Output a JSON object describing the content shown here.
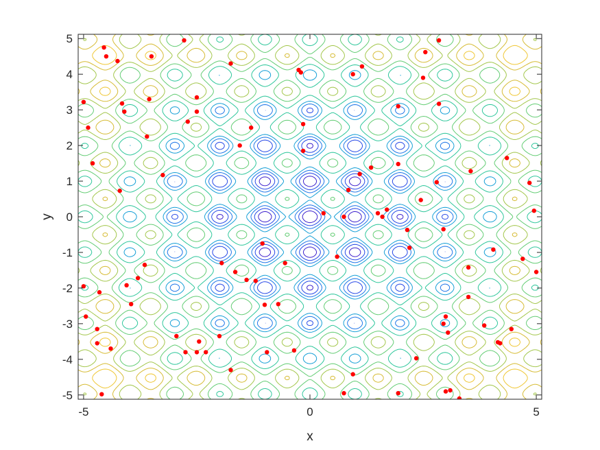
{
  "chart_data": {
    "type": "scatter",
    "title": "",
    "xlabel": "x",
    "ylabel": "y",
    "xlim": [
      -5.12,
      5.12
    ],
    "ylim": [
      -5.12,
      5.12
    ],
    "xticks": [
      -5,
      0,
      5
    ],
    "yticks": [
      -5,
      -4,
      -3,
      -2,
      -1,
      0,
      1,
      2,
      3,
      4,
      5
    ],
    "grid": false,
    "legend": "none",
    "background_contour": {
      "function": "Rastrigin",
      "levels": [
        5,
        10,
        15,
        20,
        30,
        40,
        50,
        60,
        70
      ],
      "colormap": [
        "#3b1fcc",
        "#2446e6",
        "#1b74e8",
        "#139ed6",
        "#12b8c0",
        "#2cc69a",
        "#62cc73",
        "#a2c64a",
        "#d6bb33",
        "#efc632"
      ]
    },
    "series": [
      {
        "marker_color": "#ff0000",
        "x": [
          -4.55,
          -4.5,
          -4.25,
          -3.5,
          -2.78,
          -1.75,
          -0.25,
          -0.2,
          0.95,
          1.15,
          2.55,
          2.5,
          2.85,
          -5.0,
          -4.15,
          -3.55,
          -2.5,
          -4.1,
          -2.5,
          -4.9,
          -2.7,
          -1.3,
          -0.15,
          1.95,
          2.85,
          -3.6,
          -1.55,
          -0.15,
          -4.8,
          1.35,
          1.95,
          3.55,
          4.35,
          -4.2,
          -3.25,
          0.85,
          1.1,
          2.8,
          4.85,
          2.45,
          4.95,
          0.3,
          0.75,
          1.5,
          1.6,
          1.7,
          2.15,
          2.95,
          -1.05,
          2.2,
          4.05,
          -3.65,
          -1.95,
          -0.55,
          0.6,
          4.7,
          3.5,
          -3.8,
          -1.65,
          -1.4,
          -1.2,
          -5.0,
          -4.05,
          -4.65,
          -3.95,
          -1.0,
          -0.7,
          3.5,
          -4.95,
          3.0,
          2.95,
          3.85,
          3.05,
          -4.7,
          -2.95,
          -4.7,
          -4.4,
          -2.45,
          -2.0,
          4.45,
          -2.75,
          -2.5,
          -2.3,
          -0.95,
          -0.35,
          4.15,
          4.2,
          -1.75,
          2.35,
          0.95,
          -4.6,
          0.75,
          3.0,
          3.1,
          1.95,
          3.3,
          5.0
        ],
        "y": [
          4.75,
          4.5,
          4.37,
          4.5,
          4.95,
          4.3,
          4.12,
          4.05,
          4.0,
          4.22,
          4.62,
          3.9,
          4.95,
          3.22,
          3.18,
          3.3,
          3.35,
          2.95,
          2.95,
          2.5,
          2.67,
          2.5,
          2.6,
          3.1,
          3.17,
          2.25,
          2.0,
          1.85,
          1.5,
          1.38,
          1.48,
          1.28,
          1.65,
          0.73,
          1.17,
          0.75,
          1.2,
          0.97,
          0.95,
          0.47,
          0.17,
          0.1,
          0.0,
          0.1,
          0.0,
          0.2,
          -0.37,
          -0.35,
          -0.75,
          -0.87,
          -0.92,
          -1.35,
          -1.3,
          -1.3,
          -1.12,
          -1.18,
          -1.42,
          -1.72,
          -1.55,
          -1.77,
          -1.8,
          -1.95,
          -1.92,
          -2.12,
          -2.45,
          -2.47,
          -2.45,
          -2.25,
          -2.8,
          -2.8,
          -3.0,
          -3.05,
          -3.25,
          -3.15,
          -3.35,
          -3.55,
          -3.7,
          -3.5,
          -3.35,
          -3.15,
          -3.8,
          -3.8,
          -3.8,
          -3.8,
          -3.75,
          -3.52,
          -3.55,
          -4.3,
          -3.97,
          -4.42,
          -4.98,
          -4.95,
          -4.9,
          -4.87,
          -4.95,
          -5.1,
          -1.55
        ]
      }
    ]
  }
}
